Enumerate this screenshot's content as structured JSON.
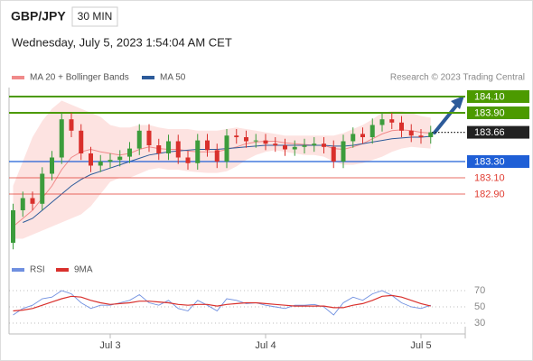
{
  "header": {
    "symbol": "GBP/JPY",
    "interval": "30 MIN",
    "timestamp": "Wednesday, July 5, 2023 1:54:04 AM CET",
    "credit": "Research © 2023 Trading Central"
  },
  "chart_data": [
    {
      "type": "candlestick",
      "categories": [
        null,
        null,
        null,
        null,
        null,
        null,
        null,
        null,
        null,
        null,
        "Jul 3",
        null,
        null,
        null,
        null,
        null,
        null,
        null,
        null,
        null,
        null,
        null,
        null,
        null,
        null,
        null,
        "Jul 4",
        null,
        null,
        null,
        null,
        null,
        null,
        null,
        null,
        null,
        null,
        null,
        null,
        null,
        null,
        null,
        "Jul 5",
        null
      ],
      "open": [
        182.3,
        182.7,
        182.85,
        182.78,
        183.15,
        183.35,
        183.82,
        183.68,
        183.4,
        183.25,
        183.3,
        183.32,
        183.36,
        183.46,
        183.68,
        183.5,
        183.4,
        183.55,
        183.35,
        183.28,
        183.56,
        183.44,
        183.3,
        183.62,
        183.6,
        183.55,
        183.56,
        183.52,
        183.5,
        183.45,
        183.48,
        183.5,
        183.52,
        183.48,
        183.3,
        183.55,
        183.64,
        183.6,
        183.75,
        183.82,
        183.78,
        183.68,
        183.62,
        183.6
      ],
      "high": [
        182.78,
        182.93,
        182.93,
        183.23,
        183.43,
        183.9,
        183.9,
        183.76,
        183.48,
        183.38,
        183.4,
        183.44,
        183.54,
        183.76,
        183.76,
        183.58,
        183.63,
        183.63,
        183.43,
        183.64,
        183.64,
        183.52,
        183.7,
        183.7,
        183.68,
        183.64,
        183.64,
        183.6,
        183.58,
        183.56,
        183.58,
        183.6,
        183.6,
        183.56,
        183.63,
        183.72,
        183.72,
        183.83,
        183.9,
        183.9,
        183.86,
        183.76,
        183.7,
        183.74
      ],
      "low": [
        182.22,
        182.62,
        182.7,
        182.7,
        183.07,
        183.27,
        183.6,
        183.32,
        183.17,
        183.17,
        183.22,
        183.24,
        183.28,
        183.38,
        183.42,
        183.32,
        183.32,
        183.27,
        183.2,
        183.2,
        183.36,
        183.22,
        183.22,
        183.52,
        183.47,
        183.47,
        183.44,
        183.42,
        183.37,
        183.37,
        183.4,
        183.42,
        183.4,
        183.22,
        183.22,
        183.47,
        183.52,
        183.52,
        183.67,
        183.7,
        183.6,
        183.54,
        183.52,
        183.52
      ],
      "close": [
        182.7,
        182.85,
        182.78,
        183.15,
        183.35,
        183.82,
        183.68,
        183.4,
        183.25,
        183.3,
        183.32,
        183.36,
        183.46,
        183.68,
        183.5,
        183.4,
        183.55,
        183.35,
        183.28,
        183.56,
        183.44,
        183.3,
        183.62,
        183.6,
        183.55,
        183.56,
        183.52,
        183.5,
        183.45,
        183.48,
        183.5,
        183.52,
        183.48,
        183.3,
        183.55,
        183.64,
        183.6,
        183.75,
        183.82,
        183.78,
        183.68,
        183.62,
        183.6,
        183.66
      ],
      "up_color": "#3c9c3c",
      "down_color": "#d9302c",
      "bands": {
        "name": "MA 20 + Bollinger Bands",
        "color": "#f08a8a",
        "fill": "#fde3e1",
        "upper": [
          183.0,
          183.3,
          183.6,
          183.8,
          183.95,
          184.05,
          184.0,
          183.95,
          183.9,
          183.85,
          183.75,
          183.72,
          183.72,
          183.75,
          183.75,
          183.72,
          183.7,
          183.7,
          183.7,
          183.68,
          183.68,
          183.68,
          183.7,
          183.72,
          183.7,
          183.68,
          183.66,
          183.64,
          183.62,
          183.62,
          183.62,
          183.62,
          183.62,
          183.62,
          183.65,
          183.7,
          183.75,
          183.82,
          183.9,
          183.92,
          183.92,
          183.9,
          183.86,
          183.84
        ],
        "lower": [
          182.35,
          182.35,
          182.4,
          182.45,
          182.5,
          182.55,
          182.6,
          182.65,
          182.75,
          182.9,
          183.05,
          183.1,
          183.1,
          183.15,
          183.2,
          183.22,
          183.2,
          183.2,
          183.18,
          183.17,
          183.16,
          183.16,
          183.18,
          183.24,
          183.32,
          183.38,
          183.42,
          183.44,
          183.42,
          183.4,
          183.38,
          183.38,
          183.36,
          183.3,
          183.26,
          183.26,
          183.28,
          183.32,
          183.36,
          183.42,
          183.46,
          183.48,
          183.47,
          183.46
        ],
        "values": [
          182.5,
          182.6,
          182.7,
          182.85,
          183.0,
          183.2,
          183.35,
          183.42,
          183.45,
          183.42,
          183.4,
          183.38,
          183.4,
          183.45,
          183.48,
          183.46,
          183.45,
          183.45,
          183.43,
          183.42,
          183.42,
          183.42,
          183.45,
          183.48,
          183.52,
          183.54,
          183.55,
          183.55,
          183.53,
          183.52,
          183.51,
          183.5,
          183.5,
          183.46,
          183.45,
          183.48,
          183.52,
          183.58,
          183.64,
          183.68,
          183.69,
          183.68,
          183.66,
          183.65
        ]
      },
      "series": [
        {
          "name": "MA 50",
          "color": "#2d5b9a",
          "values": [
            null,
            182.55,
            182.6,
            182.7,
            182.8,
            182.9,
            183.0,
            183.08,
            183.14,
            183.18,
            183.22,
            183.26,
            183.3,
            183.34,
            183.38,
            183.4,
            183.42,
            183.43,
            183.44,
            183.45,
            183.45,
            183.45,
            183.46,
            183.47,
            183.48,
            183.49,
            183.5,
            183.5,
            183.5,
            183.5,
            183.5,
            183.5,
            183.5,
            183.49,
            183.49,
            183.5,
            183.52,
            183.54,
            183.56,
            183.58,
            183.59,
            183.6,
            183.6,
            183.61
          ]
        }
      ],
      "levels": [
        {
          "value": 184.1,
          "label": "184.10",
          "color": "#4c9a00",
          "label_style": "box"
        },
        {
          "value": 183.9,
          "label": "183.90",
          "color": "#4c9a00",
          "label_style": "box"
        },
        {
          "value": 183.66,
          "color": "#222222",
          "label_style": "box",
          "line_style": "dotted"
        },
        {
          "value": 183.3,
          "label": "183.30",
          "color": "#1f5fd6",
          "label_style": "box"
        },
        {
          "value": 183.1,
          "label": "183.10",
          "color": "#e03c31",
          "label_style": "text"
        },
        {
          "value": 182.9,
          "label": "182.90",
          "color": "#e03c31",
          "label_style": "text"
        }
      ],
      "ylim": [
        182.1,
        184.25
      ]
    },
    {
      "type": "line",
      "series": [
        {
          "name": "RSI",
          "color": "#6f8fe0",
          "values": [
            40,
            48,
            52,
            60,
            62,
            70,
            66,
            55,
            48,
            52,
            52,
            55,
            58,
            65,
            55,
            52,
            58,
            48,
            45,
            58,
            52,
            45,
            60,
            58,
            54,
            55,
            52,
            50,
            48,
            52,
            52,
            53,
            50,
            40,
            55,
            62,
            58,
            66,
            70,
            64,
            55,
            50,
            48,
            52
          ]
        },
        {
          "name": "9MA",
          "color": "#d9302c",
          "values": [
            45,
            46,
            48,
            52,
            56,
            60,
            63,
            62,
            58,
            55,
            53,
            54,
            55,
            57,
            57,
            56,
            55,
            53,
            52,
            53,
            53,
            51,
            53,
            54,
            55,
            55,
            54,
            53,
            52,
            51,
            51,
            51,
            51,
            49,
            49,
            52,
            54,
            58,
            63,
            64,
            62,
            58,
            54,
            51
          ]
        }
      ],
      "ylim": [
        20,
        80
      ],
      "yticks": [
        30,
        50,
        70
      ]
    }
  ]
}
